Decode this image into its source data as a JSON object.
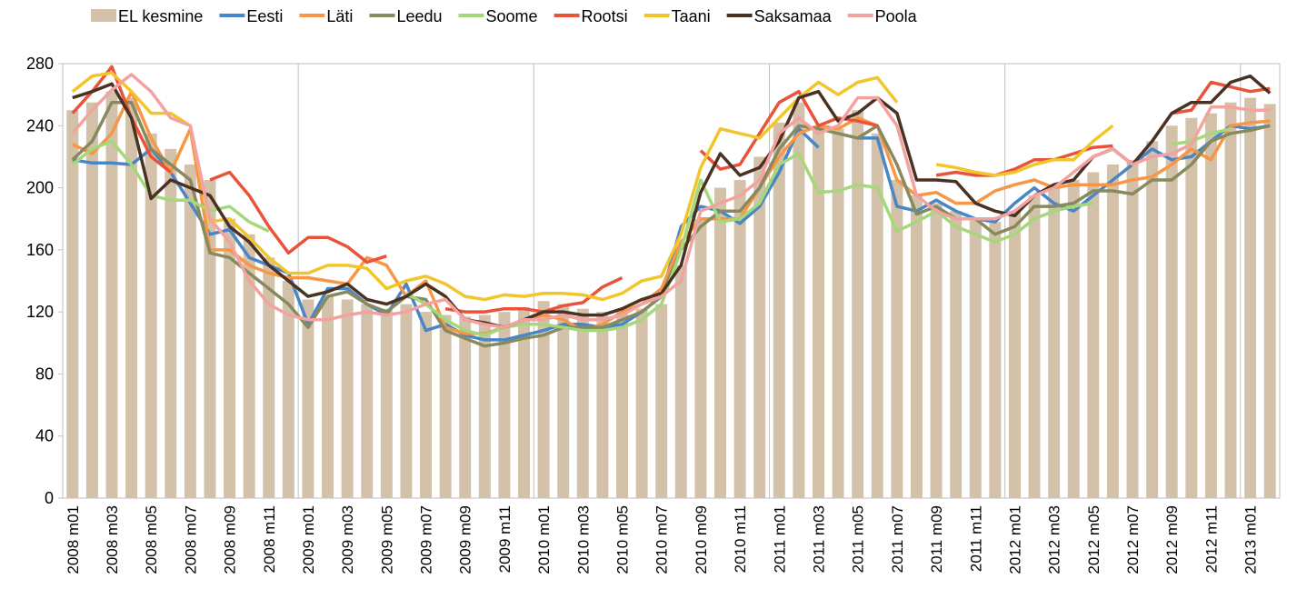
{
  "chart_data": {
    "type": "combo",
    "categories": [
      "2008 m01",
      null,
      "2008 m03",
      null,
      "2008 m05",
      null,
      "2008 m07",
      null,
      "2008 m09",
      null,
      "2008 m11",
      null,
      "2009 m01",
      null,
      "2009 m03",
      null,
      "2009 m05",
      null,
      "2009 m07",
      null,
      "2009 m09",
      null,
      "2009 m11",
      null,
      "2010 m01",
      null,
      "2010 m03",
      null,
      "2010 m05",
      null,
      "2010 m07",
      null,
      "2010 m09",
      null,
      "2010 m11",
      null,
      "2011 m01",
      null,
      "2011 m03",
      null,
      "2011 m05",
      null,
      "2011 m07",
      null,
      "2011 m09",
      null,
      "2011 m11",
      null,
      "2012 m01",
      null,
      "2012 m03",
      null,
      "2012 m05",
      null,
      "2012 m07",
      null,
      "2012 m09",
      null,
      "2012 m11",
      null,
      "2013 m01",
      null
    ],
    "ylim": [
      0,
      280
    ],
    "yticks": [
      0,
      40,
      80,
      120,
      160,
      200,
      240,
      280
    ],
    "series": [
      {
        "name": "EL kesmine",
        "type": "bar",
        "color": "#d3c1a9",
        "values": [
          250,
          255,
          262,
          258,
          235,
          225,
          215,
          205,
          180,
          170,
          155,
          140,
          128,
          130,
          128,
          125,
          122,
          125,
          120,
          118,
          117,
          118,
          120,
          123,
          127,
          125,
          122,
          120,
          120,
          122,
          125,
          150,
          180,
          200,
          205,
          220,
          242,
          255,
          240,
          238,
          250,
          235,
          205,
          195,
          190,
          185,
          180,
          178,
          185,
          195,
          200,
          205,
          210,
          215,
          218,
          230,
          240,
          245,
          248,
          255,
          258,
          254
        ]
      },
      {
        "name": "Eesti",
        "type": "line",
        "color": "#4a86c5",
        "values": [
          218,
          216,
          216,
          215,
          225,
          210,
          190,
          170,
          173,
          155,
          150,
          145,
          112,
          135,
          135,
          125,
          118,
          138,
          108,
          112,
          105,
          102,
          102,
          105,
          108,
          112,
          112,
          110,
          112,
          120,
          130,
          175,
          188,
          185,
          177,
          188,
          210,
          238,
          226,
          null,
          232,
          232,
          188,
          185,
          192,
          185,
          180,
          178,
          190,
          200,
          190,
          185,
          195,
          205,
          215,
          225,
          218,
          220,
          230,
          240,
          238,
          240
        ]
      },
      {
        "name": "Läti",
        "type": "line",
        "color": "#f79646",
        "values": [
          228,
          222,
          235,
          262,
          232,
          210,
          238,
          160,
          160,
          150,
          145,
          142,
          142,
          140,
          138,
          155,
          150,
          130,
          140,
          110,
          106,
          106,
          110,
          115,
          118,
          115,
          108,
          112,
          120,
          125,
          135,
          165,
          180,
          180,
          180,
          200,
          220,
          235,
          240,
          238,
          245,
          240,
          205,
          195,
          197,
          190,
          190,
          198,
          202,
          205,
          200,
          202,
          202,
          202,
          205,
          207,
          215,
          225,
          218,
          240,
          242,
          243
        ]
      },
      {
        "name": "Leedu",
        "type": "line",
        "color": "#868a5e",
        "values": [
          218,
          230,
          255,
          255,
          225,
          215,
          205,
          158,
          155,
          145,
          135,
          125,
          110,
          130,
          133,
          125,
          120,
          130,
          128,
          108,
          103,
          98,
          100,
          103,
          105,
          110,
          110,
          110,
          115,
          120,
          130,
          160,
          175,
          185,
          185,
          200,
          225,
          240,
          238,
          235,
          232,
          240,
          215,
          183,
          188,
          180,
          180,
          170,
          175,
          188,
          188,
          190,
          198,
          198,
          196,
          205,
          205,
          215,
          230,
          235,
          237,
          240
        ]
      },
      {
        "name": "Soome",
        "type": "line",
        "color": "#a4d87a",
        "values": [
          215,
          225,
          230,
          215,
          195,
          192,
          192,
          185,
          188,
          178,
          172,
          null,
          null,
          null,
          null,
          null,
          null,
          132,
          125,
          115,
          108,
          105,
          110,
          112,
          112,
          110,
          108,
          108,
          110,
          115,
          125,
          160,
          205,
          178,
          180,
          190,
          215,
          222,
          197,
          198,
          202,
          200,
          172,
          178,
          185,
          175,
          170,
          165,
          170,
          180,
          185,
          188,
          190,
          null,
          null,
          null,
          228,
          230,
          235,
          238,
          null,
          null
        ]
      },
      {
        "name": "Rootsi",
        "type": "line",
        "color": "#e8533a",
        "values": [
          248,
          262,
          278,
          245,
          220,
          210,
          null,
          205,
          210,
          195,
          175,
          158,
          168,
          168,
          162,
          152,
          156,
          null,
          null,
          122,
          120,
          120,
          122,
          122,
          120,
          124,
          126,
          136,
          142,
          null,
          null,
          null,
          224,
          212,
          215,
          235,
          255,
          262,
          240,
          245,
          243,
          240,
          null,
          null,
          208,
          210,
          208,
          208,
          212,
          218,
          218,
          222,
          226,
          227,
          null,
          null,
          248,
          250,
          268,
          265,
          262,
          264
        ]
      },
      {
        "name": "Taani",
        "type": "line",
        "color": "#f2c52c",
        "values": [
          262,
          272,
          274,
          262,
          248,
          248,
          240,
          178,
          180,
          168,
          155,
          145,
          145,
          150,
          150,
          148,
          135,
          140,
          143,
          138,
          130,
          128,
          131,
          130,
          132,
          132,
          131,
          128,
          132,
          140,
          143,
          170,
          213,
          238,
          235,
          232,
          245,
          258,
          268,
          260,
          268,
          271,
          255,
          null,
          215,
          213,
          210,
          208,
          210,
          215,
          218,
          218,
          230,
          240,
          null,
          null,
          null,
          null,
          null,
          null,
          null,
          null
        ]
      },
      {
        "name": "Saksamaa",
        "type": "line",
        "color": "#4a3222",
        "values": [
          258,
          262,
          267,
          245,
          193,
          205,
          200,
          195,
          175,
          165,
          150,
          140,
          130,
          133,
          138,
          128,
          125,
          130,
          138,
          130,
          115,
          113,
          110,
          115,
          120,
          120,
          118,
          118,
          122,
          128,
          132,
          150,
          197,
          222,
          208,
          213,
          230,
          258,
          262,
          243,
          248,
          258,
          248,
          205,
          205,
          204,
          190,
          185,
          182,
          195,
          202,
          205,
          220,
          225,
          215,
          230,
          248,
          255,
          255,
          268,
          272,
          261
        ]
      },
      {
        "name": "Poola",
        "type": "line",
        "color": "#f4a2a0",
        "values": [
          235,
          250,
          263,
          273,
          262,
          245,
          240,
          180,
          165,
          140,
          125,
          118,
          115,
          115,
          118,
          120,
          118,
          120,
          125,
          128,
          115,
          112,
          110,
          115,
          115,
          118,
          115,
          115,
          118,
          125,
          130,
          140,
          185,
          190,
          195,
          205,
          235,
          245,
          235,
          240,
          258,
          258,
          240,
          195,
          185,
          180,
          180,
          180,
          185,
          195,
          200,
          210,
          220,
          225,
          215,
          220,
          222,
          228,
          252,
          252,
          250,
          250
        ]
      }
    ]
  }
}
